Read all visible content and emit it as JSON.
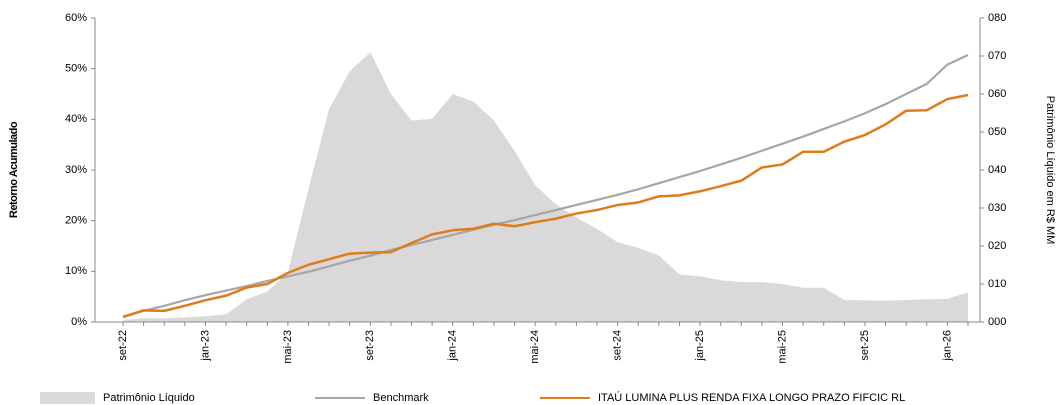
{
  "chart_data": {
    "type": "line",
    "y_label": "Retorno Acumulado",
    "y2_label": "Patrimônio Líquido em R$ MM",
    "categories": [
      "set-22",
      null,
      null,
      null,
      "jan-23",
      null,
      null,
      null,
      "mai-23",
      null,
      null,
      null,
      "set-23",
      null,
      null,
      null,
      "jan-24",
      null,
      null,
      null,
      "mai-24",
      null,
      null,
      null,
      "set-24",
      null,
      null,
      null,
      "jan-25",
      null,
      null,
      null,
      "mai-25",
      null,
      null,
      null,
      "set-25",
      null,
      null,
      null,
      "jan-26",
      null
    ],
    "ylim": [
      0,
      60
    ],
    "yticks": [
      {
        "value": 0,
        "label": "0%"
      },
      {
        "value": 10,
        "label": "10%"
      },
      {
        "value": 20,
        "label": "20%"
      },
      {
        "value": 30,
        "label": "30%"
      },
      {
        "value": 40,
        "label": "40%"
      },
      {
        "value": 50,
        "label": "50%"
      },
      {
        "value": 60,
        "label": "60%"
      }
    ],
    "y2lim": [
      0,
      80
    ],
    "y2ticks": [
      {
        "value": 0,
        "label": "000"
      },
      {
        "value": 10,
        "label": "010"
      },
      {
        "value": 20,
        "label": "020"
      },
      {
        "value": 30,
        "label": "030"
      },
      {
        "value": 40,
        "label": "040"
      },
      {
        "value": 50,
        "label": "050"
      },
      {
        "value": 60,
        "label": "060"
      },
      {
        "value": 70,
        "label": "070"
      },
      {
        "value": 80,
        "label": "080"
      }
    ],
    "series": [
      {
        "name": "Patrimônio Líquido",
        "type": "area",
        "axis": "y2",
        "color": "#d9d9d9",
        "values": [
          0.5,
          1,
          1,
          1.2,
          1.5,
          2,
          6,
          8,
          13,
          35,
          56,
          66,
          71,
          60,
          53,
          53.5,
          60,
          58,
          53,
          45,
          36,
          31,
          27.5,
          24.5,
          21,
          19.5,
          17.5,
          12.5,
          12,
          11,
          10.5,
          10.5,
          10,
          9,
          9,
          5.8,
          5.7,
          5.6,
          5.8,
          6,
          6.1,
          7.8
        ]
      },
      {
        "name": "Benchmark",
        "type": "line",
        "color": "#a6a6a6",
        "values": [
          1.0,
          2.2,
          3.2,
          4.3,
          5.3,
          6.2,
          7.1,
          8.1,
          9.0,
          9.9,
          11.0,
          12.1,
          13.1,
          14.2,
          15.2,
          16.2,
          17.2,
          18.2,
          19.2,
          20.1,
          21.1,
          22.1,
          23.1,
          24.1,
          25.1,
          26.2,
          27.4,
          28.6,
          29.8,
          31.1,
          32.4,
          33.8,
          35.2,
          36.6,
          38.1,
          39.6,
          41.2,
          43.0,
          45.0,
          47.0,
          50.8,
          52.7
        ]
      },
      {
        "name": "ITAÚ LUMINA PLUS RENDA FIXA LONGO PRAZO FIFCIC RL",
        "type": "line",
        "color": "#e07b1a",
        "values": [
          1.0,
          2.3,
          2.2,
          3.2,
          4.3,
          5.2,
          6.8,
          7.5,
          9.7,
          11.3,
          12.4,
          13.5,
          13.7,
          13.8,
          15.6,
          17.3,
          18.1,
          18.4,
          19.4,
          18.9,
          19.7,
          20.4,
          21.4,
          22.1,
          23.1,
          23.6,
          24.8,
          25.0,
          25.8,
          26.8,
          27.9,
          30.5,
          31.1,
          33.6,
          33.6,
          35.6,
          36.9,
          39.0,
          41.7,
          41.8,
          44.0,
          44.8
        ]
      }
    ]
  }
}
